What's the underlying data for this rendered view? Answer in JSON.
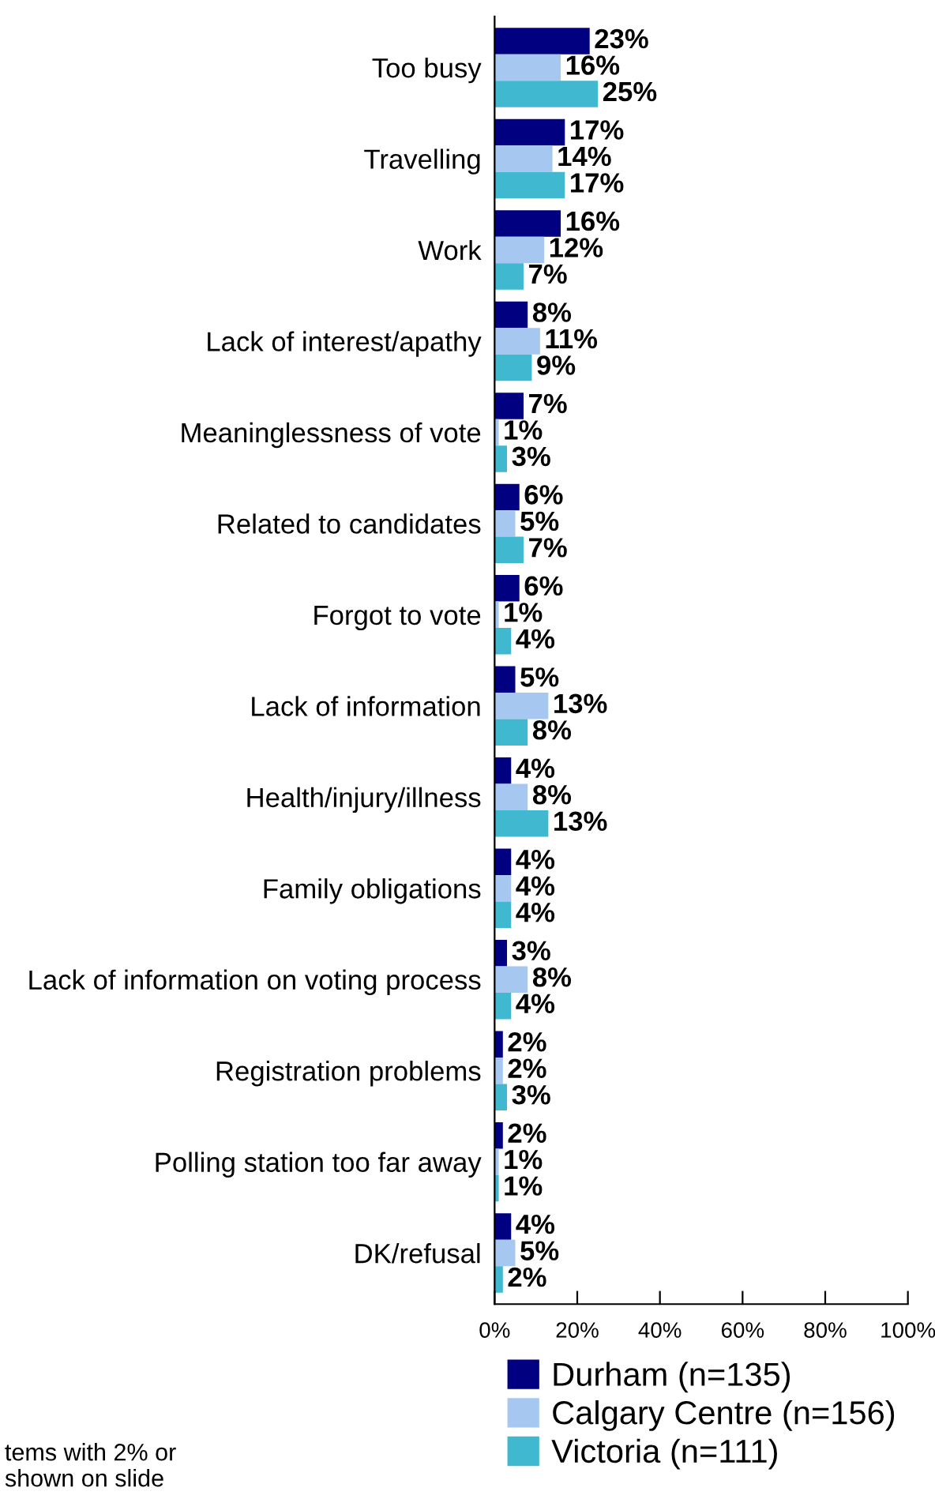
{
  "chart_data": {
    "type": "bar",
    "orientation": "horizontal",
    "categories": [
      "Too busy",
      "Travelling",
      "Work",
      "Lack of interest/apathy",
      "Meaninglessness of vote",
      "Related to candidates",
      "Forgot to vote",
      "Lack of information",
      "Health/injury/illness",
      "Family obligations",
      "Lack of information on voting process",
      "Registration problems",
      "Polling station too far away",
      "DK/refusal"
    ],
    "series": [
      {
        "name": "Durham (n=135)",
        "color": "#000080",
        "values": [
          23,
          17,
          16,
          8,
          7,
          6,
          6,
          5,
          4,
          4,
          3,
          2,
          2,
          4
        ],
        "value_labels": [
          "23%",
          "17%",
          "16%",
          "8%",
          "7%",
          "6%",
          "6%",
          "5%",
          "4%",
          "4%",
          "3%",
          "2%",
          "2%",
          "4%"
        ]
      },
      {
        "name": "Calgary Centre (n=156)",
        "color": "#a6c8f0",
        "values": [
          16,
          14,
          12,
          11,
          1,
          5,
          1,
          13,
          8,
          4,
          8,
          2,
          1,
          5
        ],
        "value_labels": [
          "16%",
          "14%",
          "12%",
          "11%",
          "1%",
          "5%",
          "1%",
          "13%",
          "8%",
          "4%",
          "8%",
          "2%",
          "1%",
          "5%"
        ]
      },
      {
        "name": "Victoria (n=111)",
        "color": "#40b8d0",
        "values": [
          25,
          17,
          7,
          9,
          3,
          7,
          4,
          8,
          13,
          4,
          4,
          3,
          1,
          2
        ],
        "value_labels": [
          "25%",
          "17%",
          "7%",
          "9%",
          "3%",
          "7%",
          "4%",
          "8%",
          "13%",
          "4%",
          "4%",
          "3%",
          "1%",
          "2%"
        ]
      }
    ],
    "xlim": [
      0,
      100
    ],
    "xticks": [
      {
        "value": 0,
        "label": "0%"
      },
      {
        "value": 20,
        "label": "20%"
      },
      {
        "value": 40,
        "label": "40%"
      },
      {
        "value": 60,
        "label": "60%"
      },
      {
        "value": 80,
        "label": "80%"
      },
      {
        "value": 100,
        "label": "100%"
      }
    ],
    "grid": false,
    "legend": "bottom right",
    "annotations": [
      "tems with 2% or\nshown on slide"
    ]
  }
}
